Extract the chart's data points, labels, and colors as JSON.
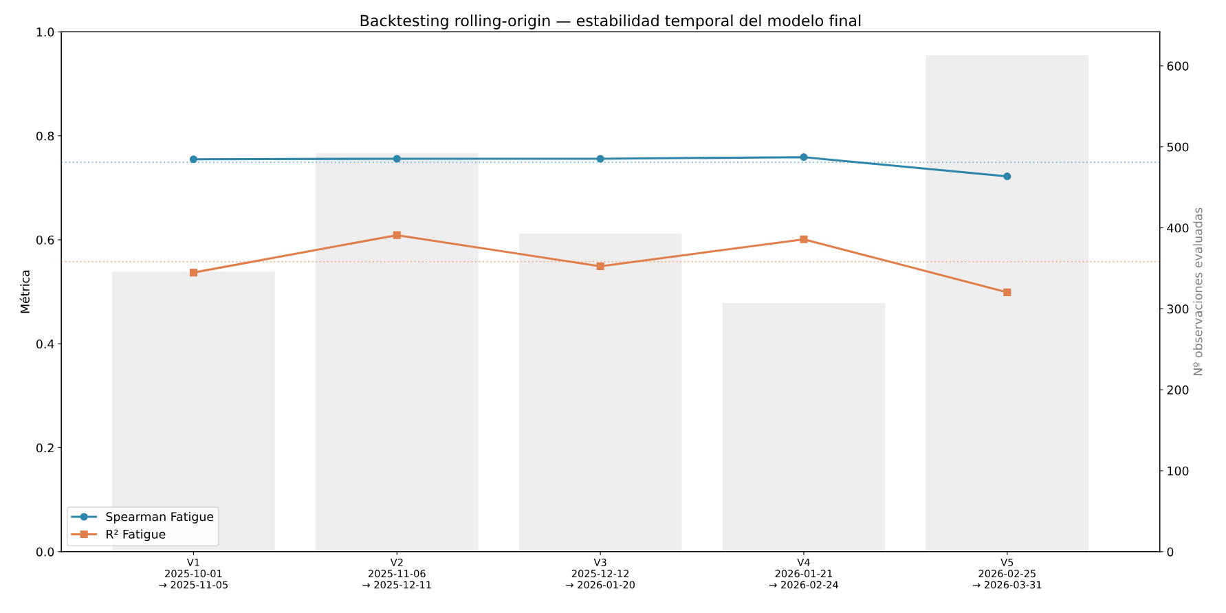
{
  "chart_data": {
    "type": "line",
    "title": "Backtesting rolling-origin — estabilidad temporal del modelo final",
    "ylabel": "Métrica",
    "y2label": "Nº observaciones evaluadas",
    "categories": [
      "V1\n2025-10-01\n→ 2025-11-05",
      "V2\n2025-11-06\n→ 2025-12-11",
      "V3\n2025-12-12\n→ 2026-01-20",
      "V4\n2026-01-21\n→ 2026-02-24",
      "V5\n2026-02-25\n→ 2026-03-31"
    ],
    "series": [
      {
        "type": "bar",
        "axis": "y2",
        "color": "#eeeeee",
        "values": [
          346,
          492,
          393,
          307,
          613
        ]
      },
      {
        "name": "Spearman Fatigue",
        "color": "#2e86ab",
        "marker": "circle",
        "values": [
          0.755,
          0.756,
          0.756,
          0.759,
          0.722
        ]
      },
      {
        "name": "R² Fatigue",
        "color": "#e07f4c",
        "marker": "square",
        "values": [
          0.537,
          0.609,
          0.549,
          0.601,
          0.499
        ]
      }
    ],
    "ref_lines": [
      {
        "axis": "y",
        "value": 0.749,
        "color": "#8cc0d6",
        "line_style": "dotted"
      },
      {
        "axis": "y",
        "value": 0.558,
        "color": "#f3b797",
        "line_style": "dotted"
      }
    ],
    "ylim": [
      0,
      1.0
    ],
    "yticks": [
      {
        "value": 0,
        "label": "0.0"
      },
      {
        "value": 0.2,
        "label": "0.2"
      },
      {
        "value": 0.4,
        "label": "0.4"
      },
      {
        "value": 0.6,
        "label": "0.6"
      },
      {
        "value": 0.8,
        "label": "0.8"
      },
      {
        "value": 1.0,
        "label": "1.0"
      }
    ],
    "y2lim": [
      0,
      642
    ],
    "y2ticks": [
      0,
      100,
      200,
      300,
      400,
      500,
      600
    ],
    "legend": "lower left",
    "grid": false
  }
}
